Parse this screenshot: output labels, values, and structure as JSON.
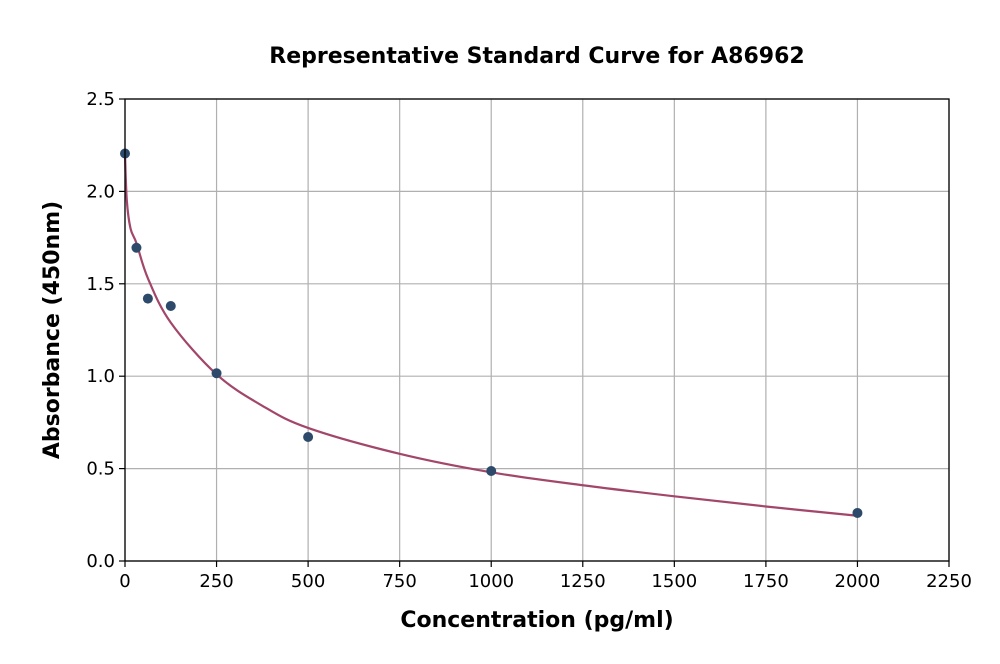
{
  "chart_data": {
    "type": "scatter",
    "title": "Representative Standard Curve for A86962",
    "xlabel": "Concentration (pg/ml)",
    "ylabel": "Absorbance (450nm)",
    "xlim": [
      0,
      2250
    ],
    "ylim": [
      0,
      2.5
    ],
    "xticks": [
      0,
      250,
      500,
      750,
      1000,
      1250,
      1500,
      1750,
      2000,
      2250
    ],
    "yticks": [
      "0.0",
      "0.5",
      "1.0",
      "1.5",
      "2.0",
      "2.5"
    ],
    "grid": true,
    "points": {
      "x": [
        0,
        31.25,
        62.5,
        125,
        250,
        500,
        1000,
        2000
      ],
      "y": [
        2.205,
        1.695,
        1.42,
        1.38,
        1.016,
        0.671,
        0.487,
        0.26
      ],
      "color": "#2e4a6b"
    },
    "fit_curve": {
      "x": [
        0,
        5,
        15,
        31.25,
        62.5,
        125,
        250,
        375,
        500,
        750,
        1000,
        1250,
        1500,
        1750,
        2000
      ],
      "y": [
        2.2,
        1.95,
        1.8,
        1.72,
        1.53,
        1.29,
        1.01,
        0.84,
        0.72,
        0.58,
        0.48,
        0.41,
        0.35,
        0.295,
        0.245
      ],
      "color": "#a2466a"
    }
  }
}
